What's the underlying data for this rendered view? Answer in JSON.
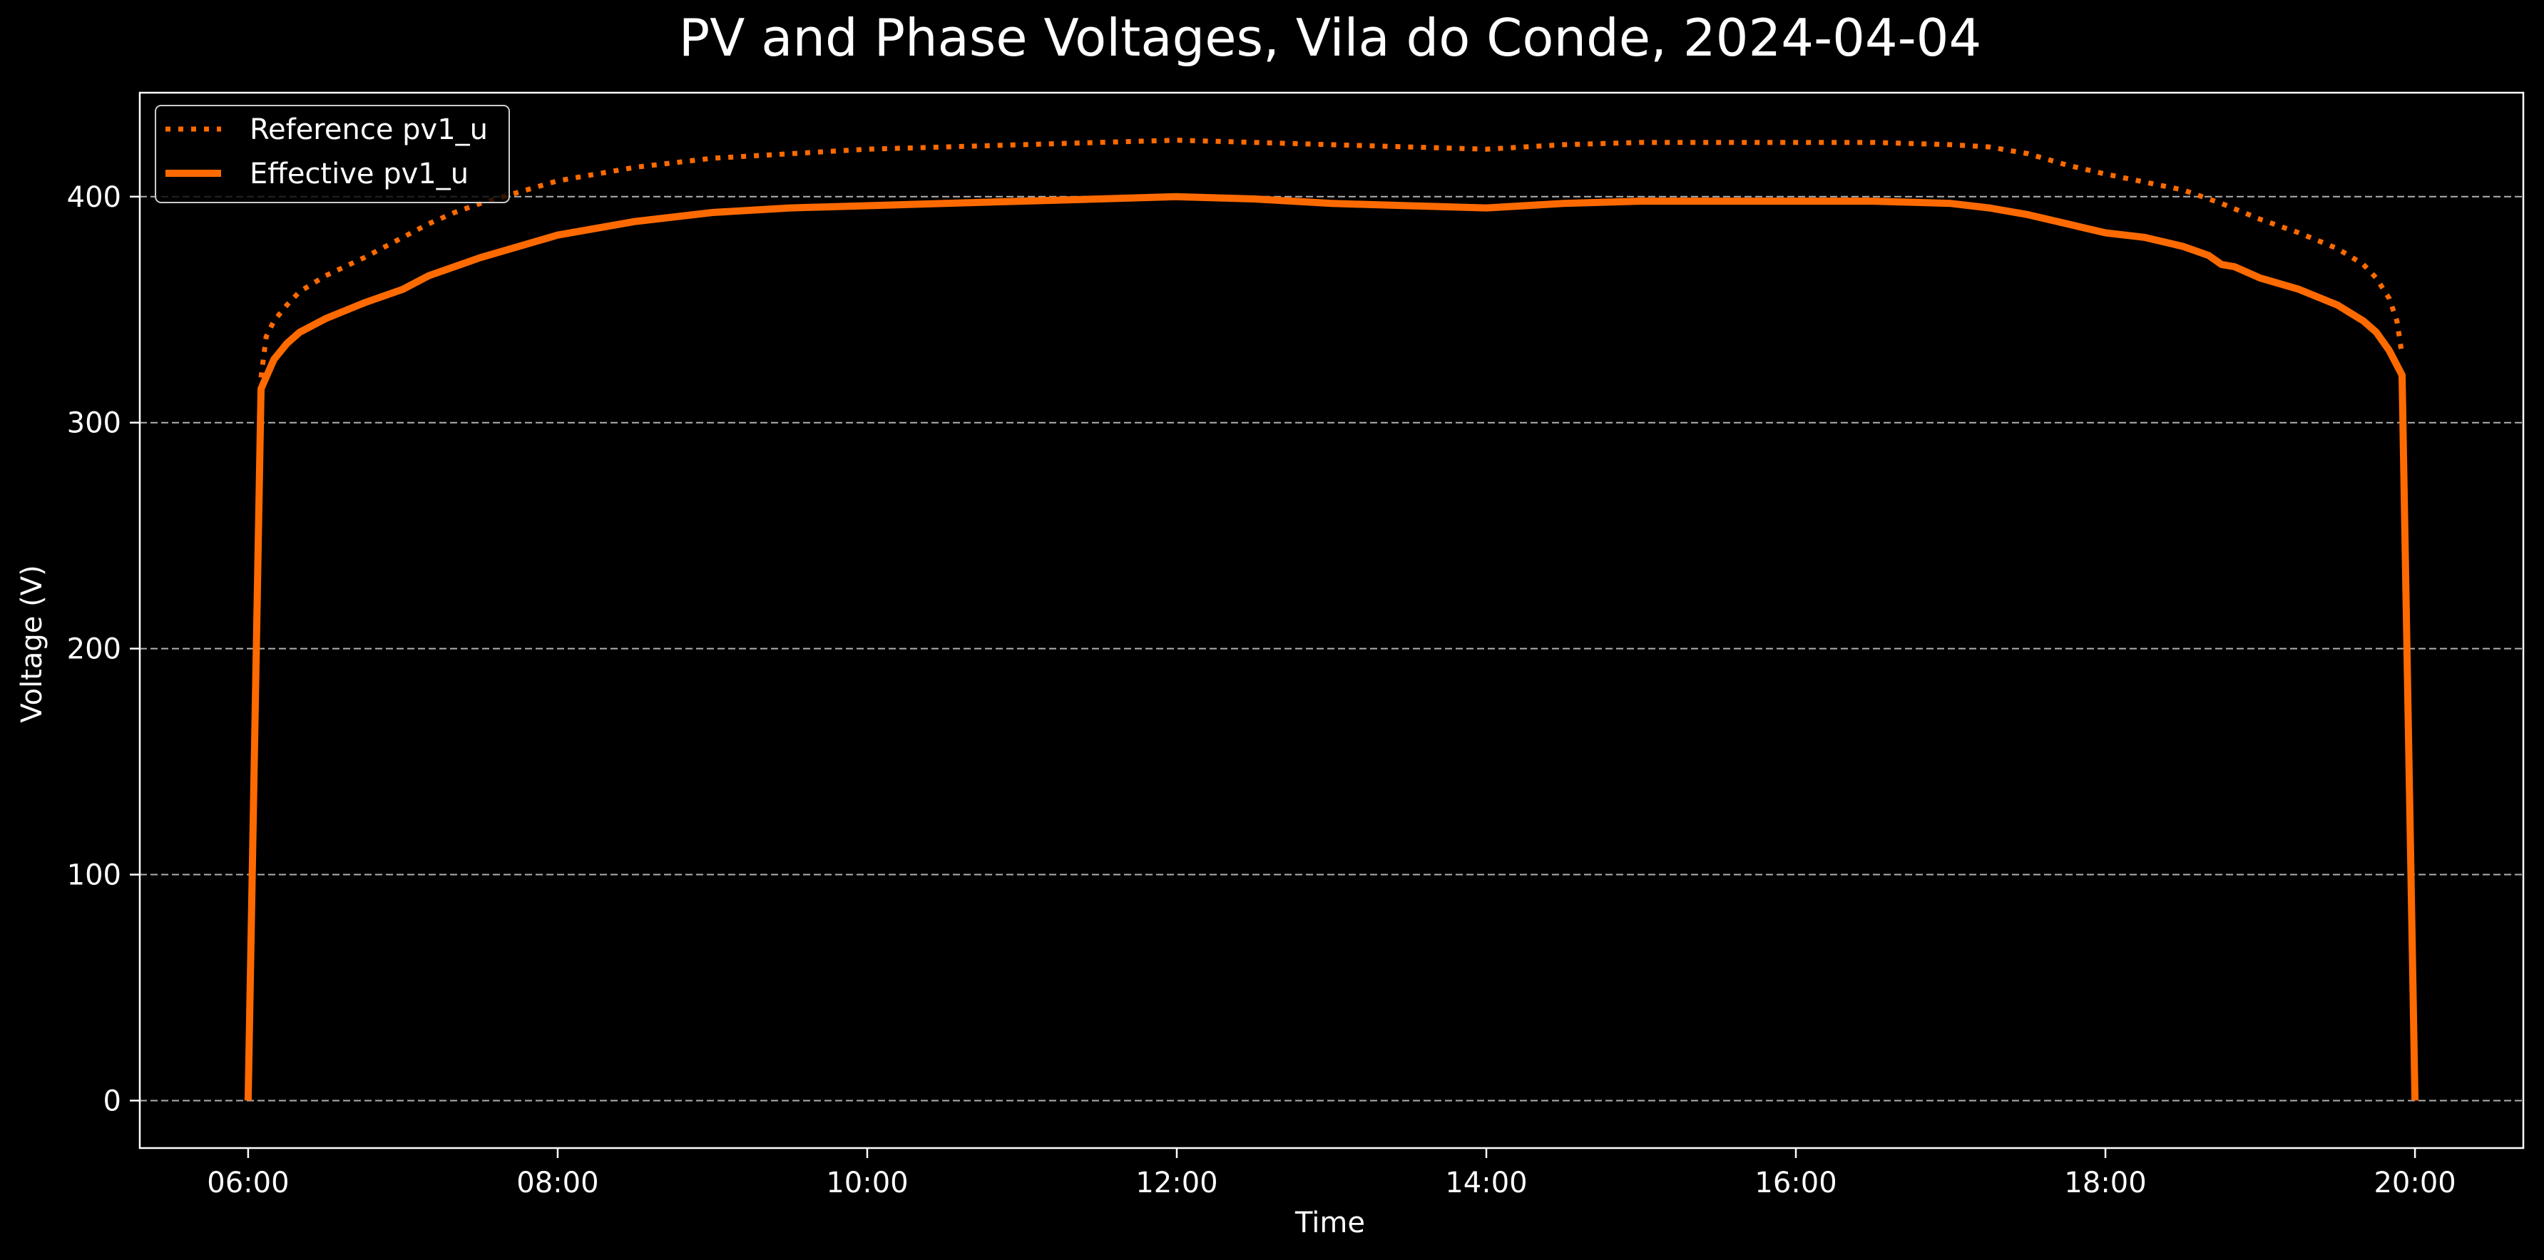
{
  "chart_data": {
    "type": "line",
    "title": "PV and Phase Voltages, Vila do Conde, 2024-04-04",
    "xlabel": "Time",
    "ylabel": "Voltage (V)",
    "x_ticks": [
      "06:00",
      "08:00",
      "10:00",
      "12:00",
      "14:00",
      "16:00",
      "18:00",
      "20:00"
    ],
    "y_ticks": [
      "0",
      "100",
      "200",
      "300",
      "400"
    ],
    "xlim": [
      "05:18",
      "20:42"
    ],
    "ylim": [
      -21,
      446
    ],
    "grid": "horizontal dashed",
    "legend_position": "top-left",
    "series": [
      {
        "name": "Reference pv1_u",
        "style": "dotted",
        "color": "#ff6a00",
        "points": [
          [
            "06:05",
            320
          ],
          [
            "06:07",
            338
          ],
          [
            "06:10",
            345
          ],
          [
            "06:15",
            352
          ],
          [
            "06:20",
            358
          ],
          [
            "06:30",
            365
          ],
          [
            "06:45",
            373
          ],
          [
            "07:00",
            382
          ],
          [
            "07:10",
            388
          ],
          [
            "07:20",
            393
          ],
          [
            "07:30",
            397
          ],
          [
            "08:00",
            407
          ],
          [
            "08:30",
            413
          ],
          [
            "09:00",
            417
          ],
          [
            "09:30",
            419
          ],
          [
            "10:00",
            421
          ],
          [
            "10:30",
            422
          ],
          [
            "11:00",
            423
          ],
          [
            "11:30",
            424
          ],
          [
            "12:00",
            425
          ],
          [
            "12:30",
            424
          ],
          [
            "13:00",
            423
          ],
          [
            "13:30",
            422
          ],
          [
            "14:00",
            421
          ],
          [
            "14:30",
            423
          ],
          [
            "15:00",
            424
          ],
          [
            "15:30",
            424
          ],
          [
            "16:00",
            424
          ],
          [
            "16:30",
            424
          ],
          [
            "17:00",
            423
          ],
          [
            "17:15",
            422
          ],
          [
            "17:30",
            419
          ],
          [
            "17:45",
            414
          ],
          [
            "18:00",
            410
          ],
          [
            "18:30",
            403
          ],
          [
            "18:45",
            397
          ],
          [
            "19:00",
            390
          ],
          [
            "19:15",
            384
          ],
          [
            "19:30",
            377
          ],
          [
            "19:40",
            370
          ],
          [
            "19:45",
            364
          ],
          [
            "19:50",
            355
          ],
          [
            "19:53",
            345
          ],
          [
            "19:55",
            330
          ]
        ]
      },
      {
        "name": "Effective pv1_u",
        "style": "solid",
        "color": "#ff6a00",
        "points": [
          [
            "06:00",
            0
          ],
          [
            "06:05",
            315
          ],
          [
            "06:10",
            328
          ],
          [
            "06:15",
            335
          ],
          [
            "06:20",
            340
          ],
          [
            "06:30",
            346
          ],
          [
            "06:45",
            353
          ],
          [
            "07:00",
            359
          ],
          [
            "07:05",
            362
          ],
          [
            "07:10",
            365
          ],
          [
            "07:20",
            369
          ],
          [
            "07:30",
            373
          ],
          [
            "08:00",
            383
          ],
          [
            "08:30",
            389
          ],
          [
            "09:00",
            393
          ],
          [
            "09:30",
            395
          ],
          [
            "10:00",
            396
          ],
          [
            "10:30",
            397
          ],
          [
            "11:00",
            398
          ],
          [
            "11:30",
            399
          ],
          [
            "12:00",
            400
          ],
          [
            "12:30",
            399
          ],
          [
            "13:00",
            397
          ],
          [
            "13:30",
            396
          ],
          [
            "14:00",
            395
          ],
          [
            "14:30",
            397
          ],
          [
            "15:00",
            398
          ],
          [
            "15:30",
            398
          ],
          [
            "16:00",
            398
          ],
          [
            "16:30",
            398
          ],
          [
            "17:00",
            397
          ],
          [
            "17:15",
            395
          ],
          [
            "17:30",
            392
          ],
          [
            "17:45",
            388
          ],
          [
            "18:00",
            384
          ],
          [
            "18:15",
            382
          ],
          [
            "18:30",
            378
          ],
          [
            "18:40",
            374
          ],
          [
            "18:45",
            370
          ],
          [
            "18:50",
            369
          ],
          [
            "19:00",
            364
          ],
          [
            "19:15",
            359
          ],
          [
            "19:30",
            352
          ],
          [
            "19:40",
            345
          ],
          [
            "19:45",
            340
          ],
          [
            "19:50",
            332
          ],
          [
            "19:55",
            321
          ],
          [
            "20:00",
            0
          ]
        ]
      }
    ]
  }
}
